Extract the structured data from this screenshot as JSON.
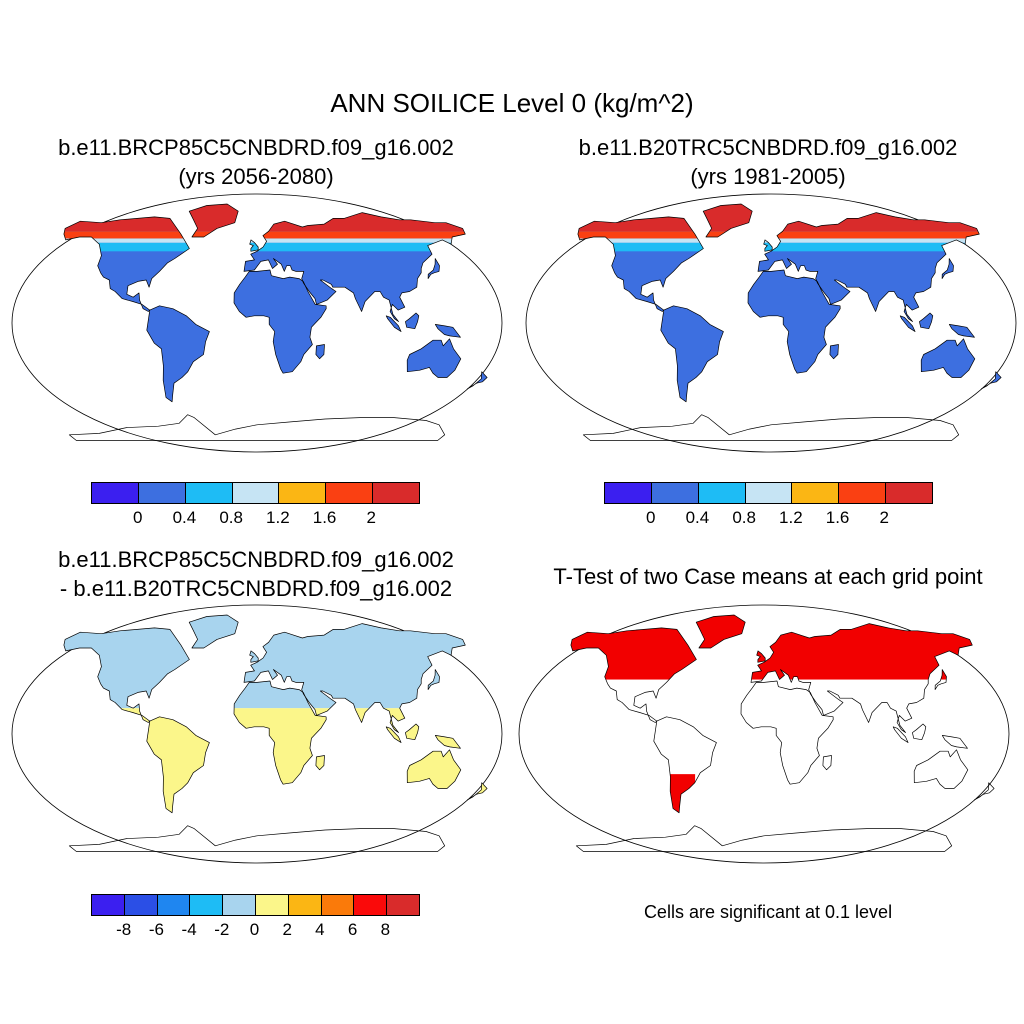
{
  "title": "ANN SOILICE Level 0 (kg/m^2)",
  "panels": [
    {
      "line1": "b.e11.BRCP85C5CNBDRD.f09_g16.002",
      "line2": "(yrs 2056-2080)"
    },
    {
      "line1": "b.e11.B20TRC5CNBDRD.f09_g16.002",
      "line2": "(yrs 1981-2005)"
    },
    {
      "line1": "b.e11.BRCP85C5CNBDRD.f09_g16.002",
      "line2": "- b.e11.B20TRC5CNBDRD.f09_g16.002"
    },
    {
      "line1": "T-Test of two Case means at each grid point",
      "line2": ""
    }
  ],
  "colorbar_abs": {
    "colors": [
      "#3b1ff0",
      "#3d6fe0",
      "#1ebcf5",
      "#c6e4f4",
      "#fbb614",
      "#fa4012",
      "#d92b2b"
    ],
    "labels": [
      "0",
      "0.4",
      "0.8",
      "1.2",
      "1.6",
      "2"
    ]
  },
  "colorbar_diff": {
    "colors": [
      "#3b1ff0",
      "#2b4fe6",
      "#1f86f0",
      "#1ebcf5",
      "#a8d4ee",
      "#fbf68a",
      "#fbb614",
      "#fa7a0a",
      "#fa0a0a",
      "#d92b2b"
    ],
    "labels": [
      "-8",
      "-6",
      "-4",
      "-2",
      "0",
      "2",
      "4",
      "6",
      "8"
    ]
  },
  "note": "Cells are significant at 0.1 level",
  "map_colors": {
    "land_base_abs": "#3d6fe0",
    "north_cold": "#d92b2b",
    "north_warm": "#fa4012",
    "north_light": "#c6e4f4",
    "north_cyan": "#1ebcf5",
    "diff_north": "#a8d4ee",
    "diff_south": "#fbf68a",
    "ttest": "#f20000"
  }
}
